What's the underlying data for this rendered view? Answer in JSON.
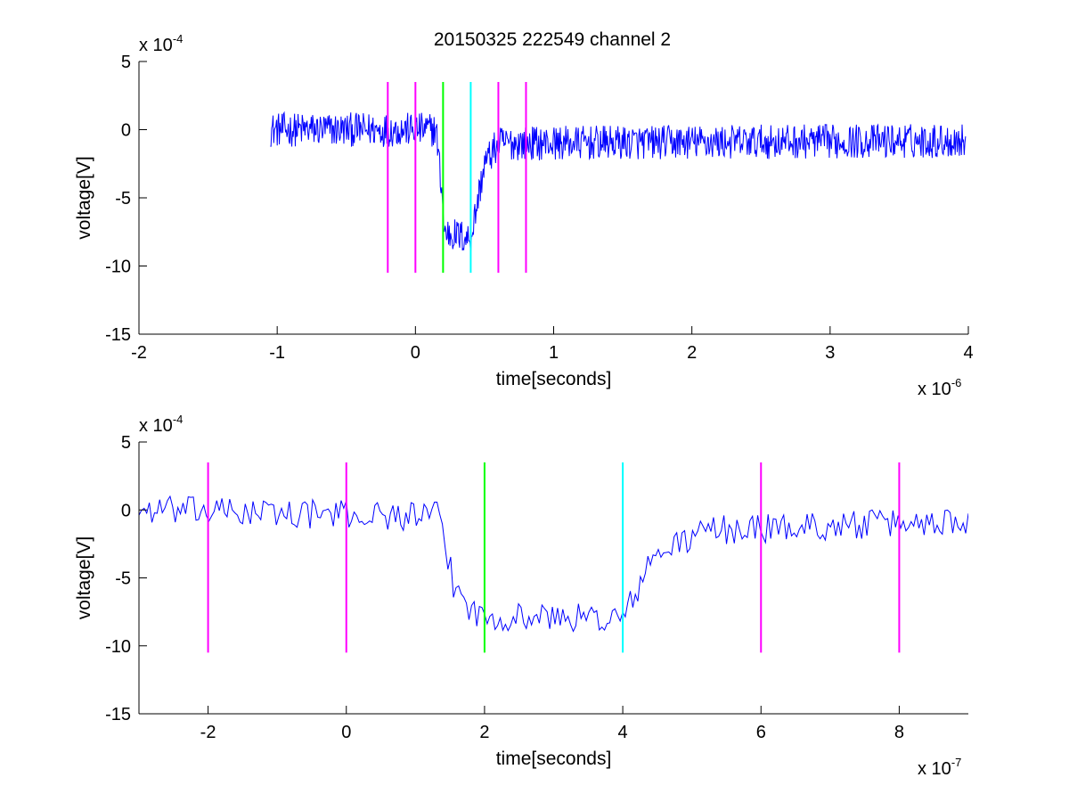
{
  "figure": {
    "title": "20150325 222549 channel 2"
  },
  "colors": {
    "signal": "#0000ff",
    "marker_magenta": "#ff00ff",
    "marker_green": "#00ff00",
    "marker_cyan": "#00ffff"
  },
  "chart_data": [
    {
      "type": "line",
      "title": "20150325 222549 channel 2",
      "xlabel": "time[seconds]",
      "ylabel": "voltage[V]",
      "x_multiplier": "x 10",
      "x_exponent": "-6",
      "y_multiplier": "x 10",
      "y_exponent": "-4",
      "xlim": [
        -2,
        4
      ],
      "ylim": [
        -15,
        5
      ],
      "xticks": [
        -2,
        -1,
        0,
        1,
        2,
        3,
        4
      ],
      "xtick_labels": [
        "-2",
        "-1",
        "0",
        "1",
        "2",
        "3",
        "4"
      ],
      "yticks": [
        -15,
        -10,
        -5,
        0,
        5
      ],
      "ytick_labels": [
        "-15",
        "-10",
        "-5",
        "0",
        "5"
      ],
      "grid": false,
      "signal": {
        "color": "#0000ff",
        "segments": [
          {
            "x": [
              -1.05,
              0.15
            ],
            "y": [
              0,
              0
            ]
          },
          {
            "x": [
              0.15,
              0.2
            ],
            "y": [
              0,
              -5.5
            ]
          },
          {
            "x": [
              0.2,
              0.4
            ],
            "y": [
              -7.5,
              -8.0
            ]
          },
          {
            "x": [
              0.4,
              0.5
            ],
            "y": [
              -8.0,
              -2.5
            ]
          },
          {
            "x": [
              0.5,
              0.6
            ],
            "y": [
              -2.5,
              -1.0
            ]
          },
          {
            "x": [
              0.6,
              3.98
            ],
            "y": [
              -1.0,
              -0.8
            ]
          }
        ],
        "noise_amplitude": 1.4
      },
      "markers": [
        {
          "x": -0.2,
          "y": [
            -10.5,
            3.5
          ],
          "color": "#ff00ff"
        },
        {
          "x": 0.0,
          "y": [
            -10.5,
            3.5
          ],
          "color": "#ff00ff"
        },
        {
          "x": 0.2,
          "y": [
            -10.5,
            3.5
          ],
          "color": "#00ff00"
        },
        {
          "x": 0.4,
          "y": [
            -10.5,
            3.5
          ],
          "color": "#00ffff"
        },
        {
          "x": 0.6,
          "y": [
            -10.5,
            3.5
          ],
          "color": "#ff00ff"
        },
        {
          "x": 0.8,
          "y": [
            -10.5,
            3.5
          ],
          "color": "#ff00ff"
        }
      ]
    },
    {
      "type": "line",
      "title": "",
      "xlabel": "time[seconds]",
      "ylabel": "voltage[V]",
      "x_multiplier": "x 10",
      "x_exponent": "-7",
      "y_multiplier": "x 10",
      "y_exponent": "-4",
      "xlim": [
        -3,
        9
      ],
      "ylim": [
        -15,
        5
      ],
      "xticks": [
        -2,
        0,
        2,
        4,
        6,
        8
      ],
      "xtick_labels": [
        "-2",
        "0",
        "2",
        "4",
        "6",
        "8"
      ],
      "yticks": [
        -15,
        -10,
        -5,
        0,
        5
      ],
      "ytick_labels": [
        "-15",
        "-10",
        "-5",
        "0",
        "5"
      ],
      "grid": false,
      "signal": {
        "color": "#0000ff",
        "segments": [
          {
            "x": [
              -3,
              1.35
            ],
            "y": [
              0,
              -0.5
            ]
          },
          {
            "x": [
              1.35,
              1.55
            ],
            "y": [
              -0.5,
              -5.5
            ]
          },
          {
            "x": [
              1.55,
              1.85
            ],
            "y": [
              -5.5,
              -7.5
            ]
          },
          {
            "x": [
              1.85,
              4.0
            ],
            "y": [
              -7.8,
              -8.0
            ]
          },
          {
            "x": [
              4.0,
              4.4
            ],
            "y": [
              -8.0,
              -4.0
            ]
          },
          {
            "x": [
              4.4,
              5.2
            ],
            "y": [
              -3.5,
              -1.5
            ]
          },
          {
            "x": [
              5.2,
              9.0
            ],
            "y": [
              -1.5,
              -0.8
            ]
          }
        ],
        "noise_amplitude": 1.2
      },
      "markers": [
        {
          "x": -2,
          "y": [
            -10.5,
            3.5
          ],
          "color": "#ff00ff"
        },
        {
          "x": 0,
          "y": [
            -10.5,
            3.5
          ],
          "color": "#ff00ff"
        },
        {
          "x": 2,
          "y": [
            -10.5,
            3.5
          ],
          "color": "#00ff00"
        },
        {
          "x": 4,
          "y": [
            -10.5,
            3.5
          ],
          "color": "#00ffff"
        },
        {
          "x": 6,
          "y": [
            -10.5,
            3.5
          ],
          "color": "#ff00ff"
        },
        {
          "x": 8,
          "y": [
            -10.5,
            3.5
          ],
          "color": "#ff00ff"
        }
      ]
    }
  ]
}
